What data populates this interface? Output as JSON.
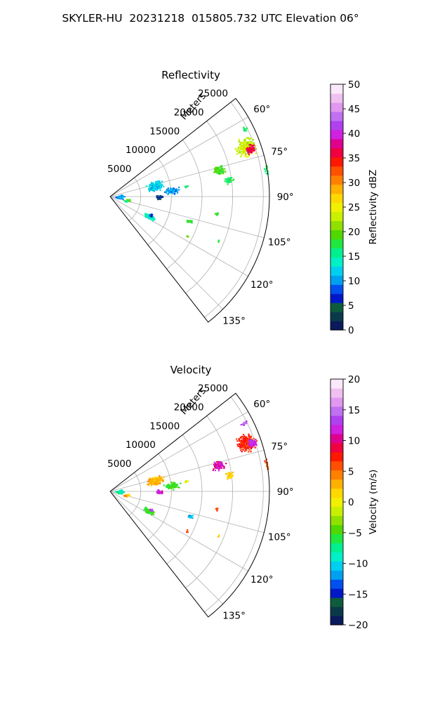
{
  "figure": {
    "title": "SKYLER-HU  20231218  015805.732 UTC Elevation 06°"
  },
  "chart_data": [
    {
      "type": "heatmap",
      "subtype": "polar-sector-radar-ppi",
      "title": "Reflectivity",
      "radial_axis_label": "Meters",
      "range_ticks": [
        5000,
        10000,
        15000,
        20000,
        25000
      ],
      "range_tick_labels": [
        "5000",
        "10000",
        "15000",
        "20000",
        "25000"
      ],
      "range_max": 26000,
      "azimuth_range_deg": [
        52,
        142
      ],
      "azimuth_ticks_deg": [
        60,
        75,
        90,
        105,
        120,
        135
      ],
      "azimuth_tick_labels": [
        "60°",
        "75°",
        "90°",
        "105°",
        "120°",
        "135°"
      ],
      "grid": true,
      "colorbar": {
        "label": "Reflectivity dBZ",
        "min": 0,
        "max": 50,
        "ticks": [
          0,
          5,
          10,
          15,
          20,
          25,
          30,
          35,
          40,
          45,
          50
        ],
        "tick_labels": [
          "0",
          "5",
          "10",
          "15",
          "20",
          "25",
          "30",
          "35",
          "40",
          "45",
          "50"
        ],
        "colors": [
          "#0a1a5c",
          "#0a3a4a",
          "#0e5c3c",
          "#0018c8",
          "#0050f0",
          "#00a0f0",
          "#00d0f0",
          "#00f0c8",
          "#00f090",
          "#20e840",
          "#50d800",
          "#90e000",
          "#c8f000",
          "#f0f000",
          "#ffd800",
          "#ffb000",
          "#ff8000",
          "#ff5000",
          "#ff1800",
          "#f00040",
          "#e00090",
          "#d020e0",
          "#b040f0",
          "#c070f0",
          "#e098f0",
          "#f0c0f0",
          "#fbe8fb"
        ]
      },
      "echo_regions": [
        {
          "az": 63,
          "r": 24500,
          "dr": 700,
          "daz": 1.2,
          "value": 17,
          "n": 14
        },
        {
          "az": 70,
          "r": 23500,
          "dr": 2000,
          "daz": 4.5,
          "value": 23,
          "n": 220
        },
        {
          "az": 71,
          "r": 24000,
          "dr": 1000,
          "daz": 2.0,
          "value": 36,
          "n": 70
        },
        {
          "az": 76,
          "r": 18200,
          "dr": 1300,
          "daz": 3.0,
          "value": 19,
          "n": 90
        },
        {
          "az": 82,
          "r": 19500,
          "dr": 900,
          "daz": 2.0,
          "value": 17,
          "n": 40
        },
        {
          "az": 80,
          "r": 26000,
          "dr": 700,
          "daz": 2.0,
          "value": 17,
          "n": 25
        },
        {
          "az": 76,
          "r": 7500,
          "dr": 1700,
          "daz": 7.0,
          "value": 12,
          "n": 170
        },
        {
          "az": 84,
          "r": 10000,
          "dr": 1500,
          "daz": 4.0,
          "value": 10,
          "n": 90
        },
        {
          "az": 90,
          "r": 8000,
          "dr": 800,
          "daz": 3.0,
          "value": 6,
          "n": 40
        },
        {
          "az": 82,
          "r": 12500,
          "dr": 400,
          "daz": 1.0,
          "value": 17,
          "n": 8
        },
        {
          "az": 90,
          "r": 1500,
          "dr": 900,
          "daz": 14.0,
          "value": 10,
          "n": 70
        },
        {
          "az": 100,
          "r": 2800,
          "dr": 500,
          "daz": 5.0,
          "value": 20,
          "n": 20
        },
        {
          "az": 105,
          "r": 2500,
          "dr": 400,
          "daz": 2.0,
          "value": 16,
          "n": 12
        },
        {
          "az": 117,
          "r": 7000,
          "dr": 1200,
          "daz": 4.0,
          "value": 14,
          "n": 80
        },
        {
          "az": 114,
          "r": 7200,
          "dr": 400,
          "daz": 2.0,
          "value": 7,
          "n": 14
        },
        {
          "az": 107,
          "r": 13500,
          "dr": 700,
          "daz": 1.5,
          "value": 18,
          "n": 24
        },
        {
          "az": 99,
          "r": 17500,
          "dr": 400,
          "daz": 1.0,
          "value": 18,
          "n": 8
        },
        {
          "az": 117,
          "r": 14000,
          "dr": 300,
          "daz": 1.0,
          "value": 20,
          "n": 5
        },
        {
          "az": 112,
          "r": 19000,
          "dr": 300,
          "daz": 1.0,
          "value": 18,
          "n": 4
        }
      ]
    },
    {
      "type": "heatmap",
      "subtype": "polar-sector-radar-ppi",
      "title": "Velocity",
      "radial_axis_label": "Meters",
      "range_ticks": [
        5000,
        10000,
        15000,
        20000,
        25000
      ],
      "range_tick_labels": [
        "5000",
        "10000",
        "15000",
        "20000",
        "25000"
      ],
      "range_max": 26000,
      "azimuth_range_deg": [
        52,
        142
      ],
      "azimuth_ticks_deg": [
        60,
        75,
        90,
        105,
        120,
        135
      ],
      "azimuth_tick_labels": [
        "60°",
        "75°",
        "90°",
        "105°",
        "120°",
        "135°"
      ],
      "grid": true,
      "colorbar": {
        "label": "Velocity (m/s)",
        "min": -20,
        "max": 20,
        "ticks": [
          -20,
          -15,
          -10,
          -5,
          0,
          5,
          10,
          15,
          20
        ],
        "tick_labels": [
          "−20",
          "−15",
          "−10",
          "−5",
          "0",
          "5",
          "10",
          "15",
          "20"
        ],
        "colors": [
          "#0a1a5c",
          "#0a3a4a",
          "#0e5c3c",
          "#0018c8",
          "#0050f0",
          "#00a0f0",
          "#00d0f0",
          "#00f0c8",
          "#00f090",
          "#20e840",
          "#50d800",
          "#90e000",
          "#c8f000",
          "#f0f000",
          "#ffd800",
          "#ffb000",
          "#ff8000",
          "#ff5000",
          "#ff1800",
          "#f00040",
          "#e00090",
          "#d020e0",
          "#b040f0",
          "#c070f0",
          "#e098f0",
          "#f0c0f0",
          "#fbe8fb"
        ]
      },
      "echo_regions": [
        {
          "az": 63,
          "r": 24500,
          "dr": 700,
          "daz": 1.2,
          "value": 14,
          "n": 14
        },
        {
          "az": 70,
          "r": 23500,
          "dr": 2000,
          "daz": 4.5,
          "value": 7,
          "n": 220
        },
        {
          "az": 71,
          "r": 24500,
          "dr": 1000,
          "daz": 2.0,
          "value": 12,
          "n": 70
        },
        {
          "az": 76,
          "r": 18200,
          "dr": 1300,
          "daz": 3.0,
          "value": 11,
          "n": 90
        },
        {
          "az": 82,
          "r": 19500,
          "dr": 900,
          "daz": 2.0,
          "value": 2,
          "n": 40
        },
        {
          "az": 80,
          "r": 26000,
          "dr": 700,
          "daz": 2.0,
          "value": 6,
          "n": 25
        },
        {
          "az": 76,
          "r": 7500,
          "dr": 1700,
          "daz": 7.0,
          "value": 3,
          "n": 170
        },
        {
          "az": 84,
          "r": 10000,
          "dr": 1500,
          "daz": 4.0,
          "value": -5,
          "n": 90
        },
        {
          "az": 90,
          "r": 8000,
          "dr": 800,
          "daz": 3.0,
          "value": 12,
          "n": 40
        },
        {
          "az": 82,
          "r": 12500,
          "dr": 400,
          "daz": 1.0,
          "value": 0,
          "n": 8
        },
        {
          "az": 90,
          "r": 1500,
          "dr": 900,
          "daz": 14.0,
          "value": -8,
          "n": 70
        },
        {
          "az": 100,
          "r": 2800,
          "dr": 500,
          "daz": 5.0,
          "value": 2,
          "n": 20
        },
        {
          "az": 105,
          "r": 2500,
          "dr": 400,
          "daz": 2.0,
          "value": 4,
          "n": 12
        },
        {
          "az": 117,
          "r": 7000,
          "dr": 1200,
          "daz": 4.0,
          "value": -5,
          "n": 80
        },
        {
          "az": 114,
          "r": 7200,
          "dr": 400,
          "daz": 2.0,
          "value": 14,
          "n": 14
        },
        {
          "az": 107,
          "r": 13500,
          "dr": 700,
          "daz": 1.5,
          "value": -11,
          "n": 24
        },
        {
          "az": 99,
          "r": 17500,
          "dr": 400,
          "daz": 1.0,
          "value": 6,
          "n": 8
        },
        {
          "az": 117,
          "r": 14000,
          "dr": 300,
          "daz": 1.0,
          "value": 6,
          "n": 5
        },
        {
          "az": 112,
          "r": 19000,
          "dr": 300,
          "daz": 1.0,
          "value": 2,
          "n": 4
        }
      ]
    }
  ]
}
